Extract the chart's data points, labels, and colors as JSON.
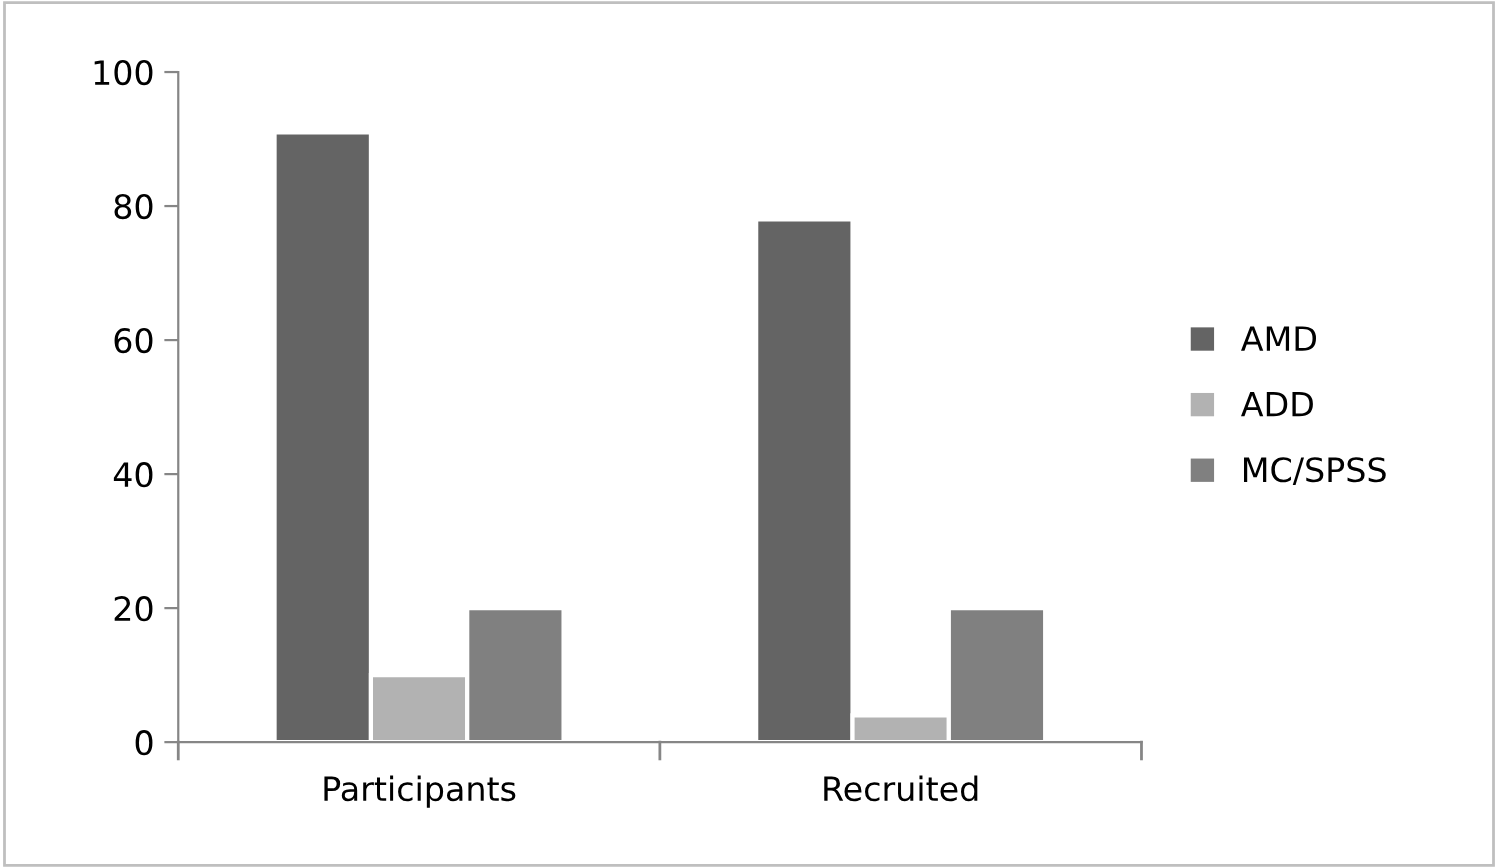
{
  "chart_data": {
    "type": "bar",
    "categories": [
      "Participants",
      "Recruited"
    ],
    "series": [
      {
        "name": "AMD",
        "color": "#646464",
        "values": [
          91,
          78
        ]
      },
      {
        "name": "ADD",
        "color": "#b2b2b2",
        "values": [
          10,
          4
        ]
      },
      {
        "name": "MC/SPSS",
        "color": "#808080",
        "values": [
          20,
          20
        ]
      }
    ],
    "ylim": [
      0,
      100
    ],
    "yticks": [
      0,
      20,
      40,
      60,
      80,
      100
    ],
    "grid": false,
    "legend": "right"
  }
}
